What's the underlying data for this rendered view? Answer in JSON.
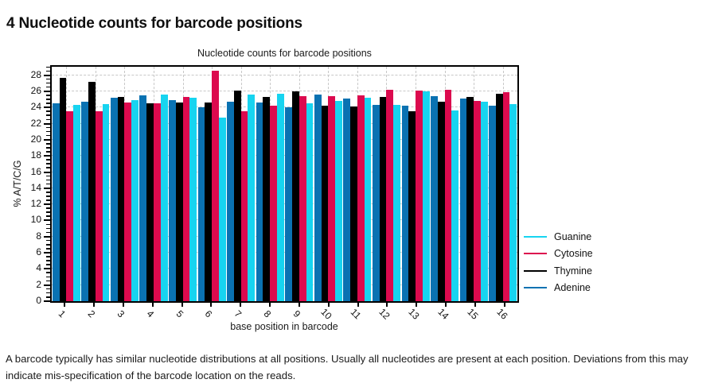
{
  "page": {
    "heading": "4 Nucleotide counts for barcode positions",
    "footer": "A barcode typically has similar nucleotide distributions at all positions. Usually all nucleotides are present at each position. Deviations from this may indicate mis-specification of the barcode location on the reads."
  },
  "chart_data": {
    "type": "bar",
    "title": "Nucleotide counts for barcode positions",
    "xlabel": "base position in barcode",
    "ylabel": "% A/T/C/G",
    "categories": [
      "1",
      "2",
      "3",
      "4",
      "5",
      "6",
      "7",
      "8",
      "9",
      "10",
      "11",
      "12",
      "13",
      "14",
      "15",
      "16"
    ],
    "ylim": [
      0,
      29
    ],
    "y_ticks": [
      0,
      2,
      4,
      6,
      8,
      10,
      12,
      14,
      16,
      18,
      20,
      22,
      24,
      26,
      28
    ],
    "y_minor_tick_step": 0.5,
    "grid": "dashed",
    "legend_position": "right",
    "bar_order": [
      "Adenine",
      "Thymine",
      "Cytosine",
      "Guanine"
    ],
    "series": [
      {
        "name": "Guanine",
        "color": "#17d4f0",
        "values": [
          24.3,
          24.4,
          24.9,
          25.6,
          25.2,
          22.7,
          25.6,
          25.7,
          24.5,
          24.8,
          25.2,
          24.3,
          26.0,
          23.6,
          24.7,
          24.4
        ]
      },
      {
        "name": "Cytosine",
        "color": "#dc0a4e",
        "values": [
          23.5,
          23.5,
          24.6,
          24.5,
          25.3,
          28.6,
          23.5,
          24.2,
          25.4,
          25.4,
          25.5,
          26.2,
          26.1,
          26.2,
          24.8,
          25.9
        ]
      },
      {
        "name": "Thymine",
        "color": "#000000",
        "values": [
          27.7,
          27.2,
          25.3,
          24.5,
          24.6,
          24.6,
          26.1,
          25.3,
          26.0,
          24.2,
          24.1,
          25.3,
          23.5,
          24.7,
          25.3,
          25.7
        ]
      },
      {
        "name": "Adenine",
        "color": "#0a72b2",
        "values": [
          24.5,
          24.7,
          25.2,
          25.5,
          24.9,
          24.0,
          24.7,
          24.6,
          24.0,
          25.6,
          25.1,
          24.3,
          24.2,
          25.4,
          25.1,
          24.2
        ]
      }
    ]
  }
}
